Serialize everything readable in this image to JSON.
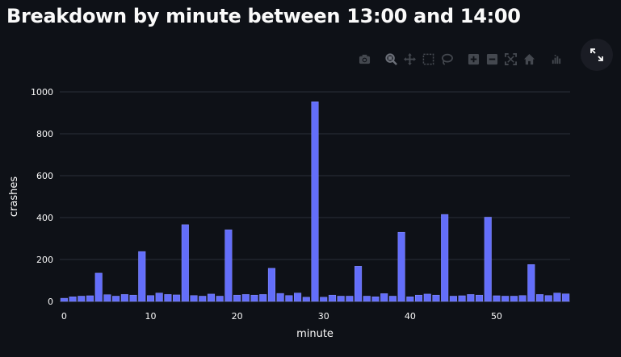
{
  "header": {
    "title": "Breakdown by minute between 13:00 and 14:00"
  },
  "modebar": {
    "buttons": [
      "camera-icon",
      "zoom-icon",
      "pan-icon",
      "box-select-icon",
      "lasso-icon",
      "zoom-in-icon",
      "zoom-out-icon",
      "autoscale-icon",
      "reset-axes-icon",
      "plotly-logo-icon"
    ]
  },
  "colors": {
    "bar": "#636efa",
    "background": "#0e1117",
    "grid": "#2b2f38",
    "text": "#fafafa"
  },
  "chart_data": {
    "type": "bar",
    "xlabel": "minute",
    "ylabel": "crashes",
    "xlim": [
      -0.5,
      58.5
    ],
    "ylim": [
      0,
      1000
    ],
    "x_ticks": [
      0,
      10,
      20,
      30,
      40,
      50
    ],
    "y_ticks": [
      0,
      200,
      400,
      600,
      800,
      1000
    ],
    "grid": true,
    "x": [
      0,
      1,
      2,
      3,
      4,
      5,
      6,
      7,
      8,
      9,
      10,
      11,
      12,
      13,
      14,
      15,
      16,
      17,
      18,
      19,
      20,
      21,
      22,
      23,
      24,
      25,
      26,
      27,
      28,
      29,
      30,
      31,
      32,
      33,
      34,
      35,
      36,
      37,
      38,
      39,
      40,
      41,
      42,
      43,
      44,
      45,
      46,
      47,
      48,
      49,
      50,
      51,
      52,
      53,
      54,
      55,
      56,
      57,
      58
    ],
    "values": [
      15,
      22,
      25,
      27,
      135,
      32,
      25,
      33,
      30,
      238,
      28,
      40,
      33,
      31,
      366,
      28,
      25,
      35,
      25,
      342,
      30,
      33,
      30,
      33,
      158,
      38,
      28,
      40,
      20,
      953,
      20,
      30,
      25,
      25,
      168,
      25,
      22,
      37,
      25,
      330,
      22,
      30,
      35,
      30,
      415,
      25,
      27,
      33,
      30,
      402,
      27,
      25,
      25,
      28,
      176,
      33,
      28,
      40,
      36
    ]
  }
}
